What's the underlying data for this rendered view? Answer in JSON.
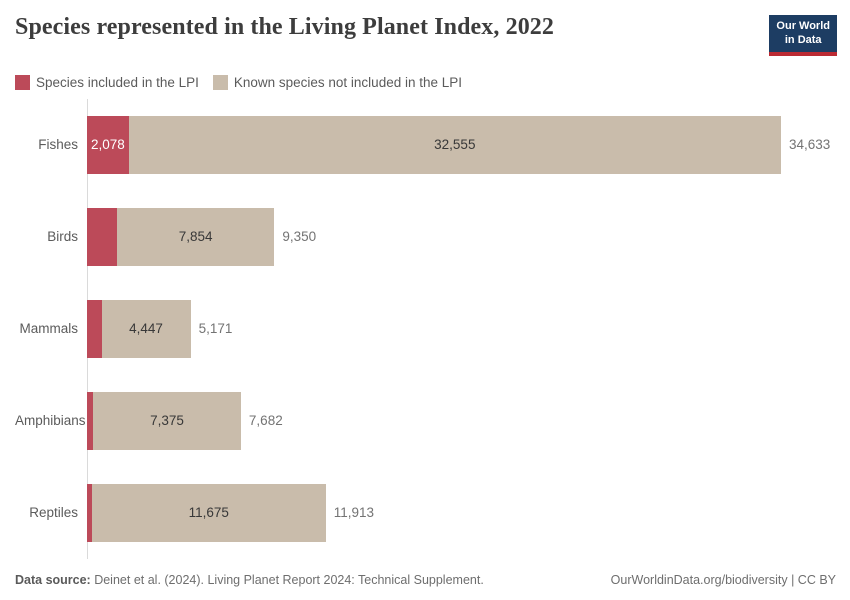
{
  "header": {
    "title": "Species represented in the Living Planet Index, 2022",
    "logo": {
      "line1": "Our World",
      "line2": "in Data",
      "bg_color": "#1d3d63",
      "accent_color": "#bb2a33"
    }
  },
  "legend": {
    "items": [
      {
        "label": "Species included in the LPI",
        "color": "#bc4a59"
      },
      {
        "label": "Known species not included in the LPI",
        "color": "#c9bcab"
      }
    ]
  },
  "chart_data": {
    "type": "bar",
    "orientation": "horizontal",
    "stacked": true,
    "title": "Species represented in the Living Planet Index, 2022",
    "categories": [
      "Fishes",
      "Birds",
      "Mammals",
      "Amphibians",
      "Reptiles"
    ],
    "series": [
      {
        "name": "Species included in the LPI",
        "color": "#bc4a59",
        "values": [
          2078,
          1496,
          724,
          307,
          238
        ]
      },
      {
        "name": "Known species not included in the LPI",
        "color": "#c9bcab",
        "values": [
          32555,
          7854,
          4447,
          7375,
          11675
        ]
      }
    ],
    "totals": [
      34633,
      9350,
      5171,
      7682,
      11913
    ],
    "segment_labels": [
      {
        "lpi": "2,078",
        "not_included": "32,555",
        "total": "34,633"
      },
      {
        "lpi": "",
        "not_included": "7,854",
        "total": "9,350"
      },
      {
        "lpi": "",
        "not_included": "4,447",
        "total": "5,171"
      },
      {
        "lpi": "",
        "not_included": "7,375",
        "total": "7,682"
      },
      {
        "lpi": "",
        "not_included": "11,675",
        "total": "11,913"
      }
    ],
    "xlim": [
      0,
      34633
    ],
    "grid": false,
    "legend_position": "top",
    "label_colors": {
      "in_bar_dark": "#383838",
      "in_bar_light": "#ffffff",
      "total": "#737373",
      "category": "#5b5b5b"
    }
  },
  "footer": {
    "source_prefix": "Data source:",
    "source_text": " Deinet et al. (2024). Living Planet Report 2024: Technical Supplement.",
    "link_text": "OurWorldinData.org/biodiversity | CC BY"
  }
}
